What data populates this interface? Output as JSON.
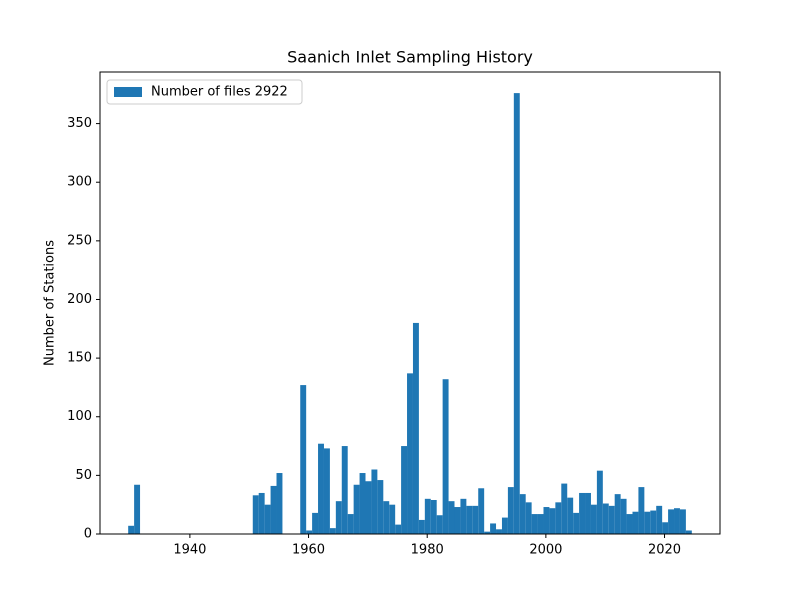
{
  "chart_data": {
    "type": "histogram",
    "title": "Saanich Inlet Sampling History",
    "y_label": "Number of Stations",
    "bins": [
      1929.6,
      1930.6,
      1931.6,
      1932.6,
      1933.6,
      1934.6,
      1935.6,
      1936.6,
      1937.6,
      1938.6,
      1939.6,
      1940.6,
      1941.6,
      1942.6,
      1943.6,
      1944.6,
      1945.6,
      1946.6,
      1947.6,
      1948.6,
      1949.6,
      1950.6,
      1951.6,
      1952.6,
      1953.6,
      1954.6,
      1955.6,
      1956.6,
      1957.6,
      1958.6,
      1959.6,
      1960.6,
      1961.6,
      1962.6,
      1963.6,
      1964.6,
      1965.6,
      1966.6,
      1967.6,
      1968.6,
      1969.6,
      1970.6,
      1971.6,
      1972.6,
      1973.6,
      1974.6,
      1975.6,
      1976.6,
      1977.6,
      1978.6,
      1979.6,
      1980.6,
      1981.6,
      1982.6,
      1983.6,
      1984.6,
      1985.6,
      1986.6,
      1987.6,
      1988.6,
      1989.6,
      1990.6,
      1991.6,
      1992.6,
      1993.6,
      1994.6,
      1995.6,
      1996.6,
      1997.6,
      1998.6,
      1999.6,
      2000.6,
      2001.6,
      2002.6,
      2003.6,
      2004.6,
      2005.6,
      2006.6,
      2007.6,
      2008.6,
      2009.6,
      2010.6,
      2011.6,
      2012.6,
      2013.6,
      2014.6,
      2015.6,
      2016.6,
      2017.6,
      2018.6,
      2019.6,
      2020.6,
      2021.6,
      2022.6,
      2023.6,
      2024.6
    ],
    "series": [
      {
        "name": "Number of files 2922",
        "color": "#1f77b4",
        "values": [
          7,
          42,
          0,
          0,
          0,
          0,
          0,
          0,
          0,
          0,
          0,
          0,
          0,
          0,
          0,
          0,
          0,
          0,
          0,
          0,
          0,
          33,
          35,
          25,
          41,
          52,
          0,
          0,
          0,
          127,
          3,
          18,
          77,
          73,
          5,
          28,
          75,
          17,
          42,
          52,
          45,
          55,
          46,
          28,
          25,
          8,
          75,
          137,
          180,
          12,
          30,
          29,
          16,
          132,
          28,
          23,
          30,
          24,
          24,
          39,
          2,
          9,
          4,
          14,
          40,
          376,
          34,
          27,
          17,
          17,
          23,
          22,
          27,
          43,
          31,
          18,
          35,
          35,
          25,
          54,
          26,
          24,
          34,
          30,
          17,
          19,
          40,
          19,
          20,
          24,
          10,
          21,
          22,
          21,
          3
        ]
      }
    ],
    "xlim": [
      1924.85,
      2029.35
    ],
    "xticks": [
      1940,
      1960,
      1980,
      2000,
      2020
    ],
    "ylim": [
      0,
      394
    ],
    "yticks": [
      0,
      50,
      100,
      150,
      200,
      250,
      300,
      350
    ],
    "legend": "upper left"
  }
}
